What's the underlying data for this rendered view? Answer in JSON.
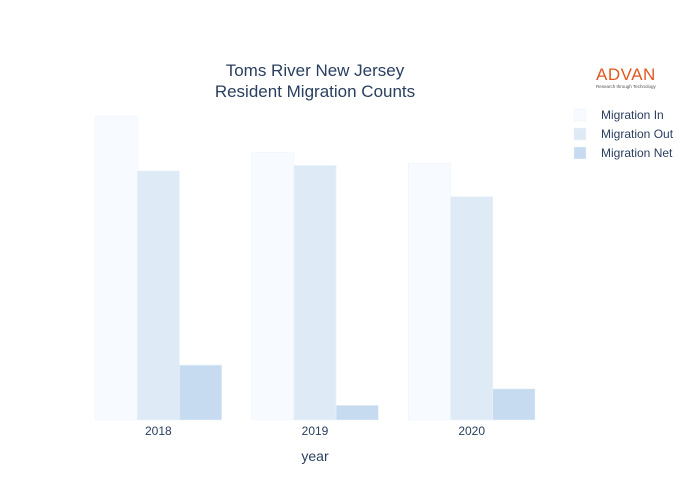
{
  "chart_data": {
    "type": "bar",
    "title_lines": [
      "Toms River New Jersey",
      "Resident Migration Counts"
    ],
    "xlabel": "year",
    "ylabel": "",
    "categories": [
      "2018",
      "2019",
      "2020"
    ],
    "series": [
      {
        "name": "Migration In",
        "values": [
          8300,
          7300,
          7000
        ],
        "color": "#f7fbff"
      },
      {
        "name": "Migration Out",
        "values": [
          6800,
          6950,
          6100
        ],
        "color": "#deebf7"
      },
      {
        "name": "Migration Net",
        "values": [
          1500,
          400,
          850
        ],
        "color": "#c6dbef"
      }
    ],
    "ylim": [
      0,
      8300
    ],
    "y_ticks_visible": false,
    "grid": false,
    "legend": "top-right"
  },
  "logo": {
    "word": "ADVAN",
    "tagline": "Research through Technology"
  }
}
